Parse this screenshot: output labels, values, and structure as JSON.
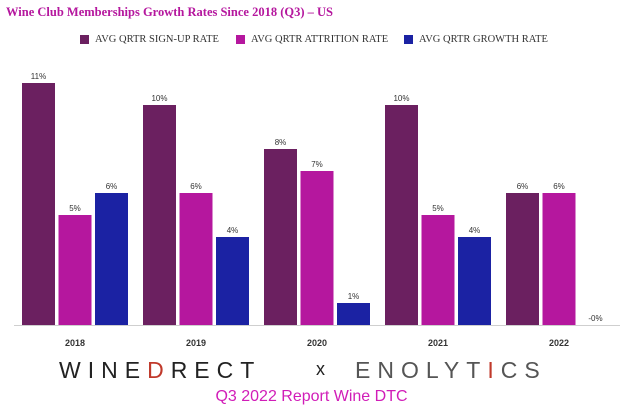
{
  "title": "Wine Club Memberships Growth Rates Since 2018 (Q3) – US",
  "chart_data": {
    "type": "bar",
    "title": "Wine Club Memberships Growth Rates Since 2018 (Q3) – US",
    "categories": [
      "2018",
      "2019",
      "2020",
      "2021",
      "2022"
    ],
    "series": [
      {
        "name": "AVG QRTR SIGN-UP RATE",
        "color": "#6b2060",
        "values": [
          11,
          10,
          8,
          10,
          6
        ],
        "labels": [
          "11%",
          "10%",
          "8%",
          "10%",
          "6%"
        ]
      },
      {
        "name": "AVG QRTR ATTRITION RATE",
        "color": "#b5179e",
        "values": [
          5,
          6,
          7,
          5,
          6
        ],
        "labels": [
          "5%",
          "6%",
          "7%",
          "5%",
          "6%"
        ]
      },
      {
        "name": "AVG QRTR GROWTH RATE",
        "color": "#1b22a3",
        "values": [
          6,
          4,
          1,
          4,
          0
        ],
        "labels": [
          "6%",
          "4%",
          "1%",
          "4%",
          "-0%"
        ]
      }
    ],
    "xlabel": "",
    "ylabel": "",
    "ylim": [
      0,
      11
    ],
    "grid": false,
    "legend": "top"
  },
  "logos": {
    "left_pre": "WINE",
    "left_accent": "D",
    "left_post": "RECT",
    "separator": "x",
    "right_pre": "ENOLYT",
    "right_accent": "I",
    "right_post": "CS"
  },
  "footer": "Q3 2022 Report Wine DTC",
  "colors": {
    "accent": "#b5179e",
    "title": "#b5179e",
    "footer": "#d11db8"
  }
}
